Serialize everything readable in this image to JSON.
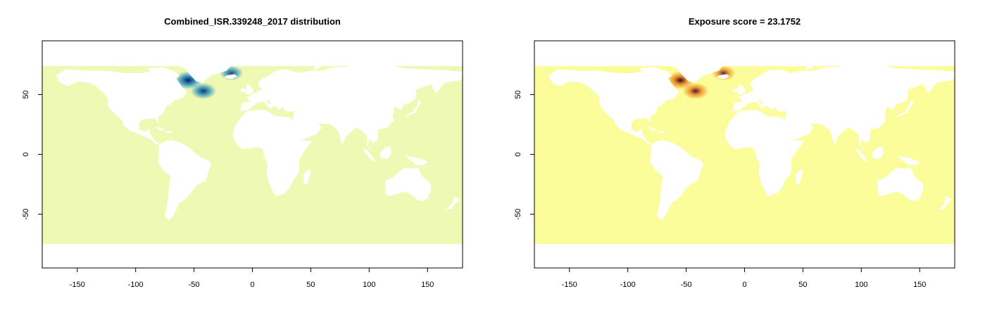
{
  "chart_data": [
    {
      "type": "heatmap",
      "title": "Combined_ISR.339248_2017 distribution",
      "xlim": [
        -180,
        180
      ],
      "ylim": [
        -95,
        95
      ],
      "x_ticks": [
        -150,
        -100,
        -50,
        0,
        50,
        100,
        150
      ],
      "y_ticks": [
        50,
        0,
        -50
      ],
      "grid": false,
      "legend": "none",
      "colors": {
        "ocean": "#eefab4",
        "land": "#ffffff",
        "hot_mid": "#2a8fbf",
        "hot_core": "#08205a"
      },
      "hotspots": [
        {
          "lon": -55,
          "lat": 62,
          "intensity": 1.0
        },
        {
          "lon": -42,
          "lat": 53,
          "intensity": 0.75
        },
        {
          "lon": -18,
          "lat": 68,
          "intensity": 0.55
        }
      ]
    },
    {
      "type": "heatmap",
      "title": "Exposure score = 23.1752",
      "xlim": [
        -180,
        180
      ],
      "ylim": [
        -95,
        95
      ],
      "x_ticks": [
        -150,
        -100,
        -50,
        0,
        50,
        100,
        150
      ],
      "y_ticks": [
        50,
        0,
        -50
      ],
      "grid": false,
      "legend": "none",
      "colors": {
        "ocean": "#fafd99",
        "land": "#ffffff",
        "hot_mid": "#f08a1e",
        "hot_core": "#2b0a3d"
      },
      "hotspots": [
        {
          "lon": -55,
          "lat": 62,
          "intensity": 1.0
        },
        {
          "lon": -42,
          "lat": 53,
          "intensity": 0.8
        },
        {
          "lon": -18,
          "lat": 68,
          "intensity": 0.6
        }
      ]
    }
  ]
}
